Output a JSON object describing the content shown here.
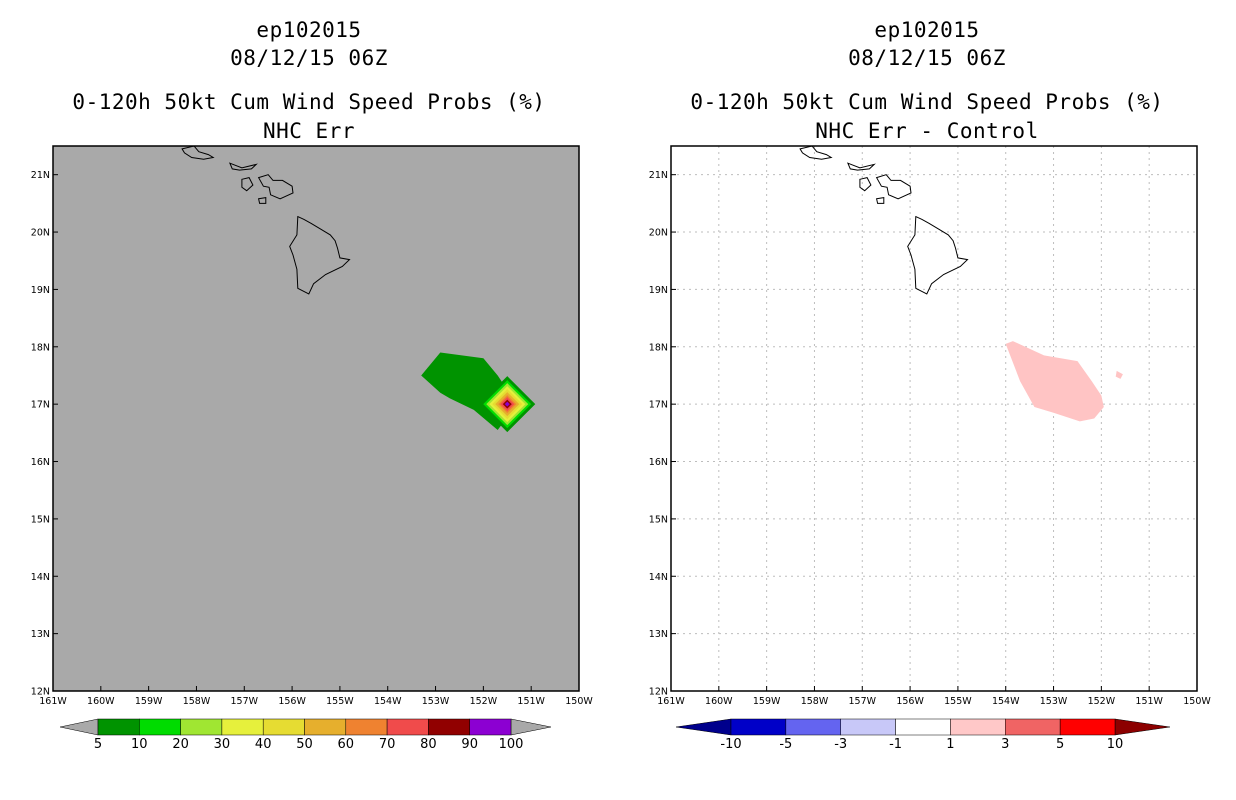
{
  "panels": [
    {
      "storm_id": "ep102015",
      "datetime": "08/12/15 06Z",
      "title": "0-120h 50kt Cum Wind Speed Probs (%)",
      "subtitle": "NHC Err"
    },
    {
      "storm_id": "ep102015",
      "datetime": "08/12/15 06Z",
      "title": "0-120h 50kt Cum Wind Speed Probs (%)",
      "subtitle": "NHC Err - Control"
    }
  ],
  "chart_data": [
    {
      "type": "heatmap",
      "title": "0-120h 50kt Cum Wind Speed Probs (%)",
      "subtitle": "NHC Err",
      "x_range_deg_lon": [
        -161,
        -150
      ],
      "y_range_deg_lat": [
        12,
        21.5
      ],
      "x_ticks": [
        "161W",
        "160W",
        "159W",
        "158W",
        "157W",
        "156W",
        "155W",
        "154W",
        "153W",
        "152W",
        "151W",
        "150W"
      ],
      "y_ticks": [
        "12N",
        "13N",
        "14N",
        "15N",
        "16N",
        "17N",
        "18N",
        "19N",
        "20N",
        "21N"
      ],
      "background": "#a9a9a9",
      "colorbar": {
        "labels": [
          "5",
          "10",
          "20",
          "30",
          "40",
          "50",
          "60",
          "70",
          "80",
          "90",
          "100"
        ],
        "colors": [
          "#009300",
          "#00dc00",
          "#a0e632",
          "#e6f03c",
          "#e6dc32",
          "#e6af2d",
          "#ef8230",
          "#f04b4b",
          "#910000",
          "#8c00d2"
        ]
      },
      "features": [
        {
          "name": "prob-5-10",
          "color": "#009300",
          "polygon_lonlat": [
            [
              -153.3,
              17.5
            ],
            [
              -152.9,
              17.9
            ],
            [
              -152.0,
              17.8
            ],
            [
              -151.7,
              17.5
            ],
            [
              -151.3,
              17.0
            ],
            [
              -151.7,
              16.55
            ],
            [
              -152.2,
              16.9
            ],
            [
              -152.7,
              17.1
            ],
            [
              -152.9,
              17.2
            ]
          ]
        },
        {
          "name": "prob-peak-center",
          "lonlat": [
            -151.5,
            17.0
          ],
          "max_value": 100
        }
      ]
    },
    {
      "type": "heatmap",
      "title": "0-120h 50kt Cum Wind Speed Probs (%)",
      "subtitle": "NHC Err - Control",
      "x_range_deg_lon": [
        -161,
        -150
      ],
      "y_range_deg_lat": [
        12,
        21.5
      ],
      "x_ticks": [
        "161W",
        "160W",
        "159W",
        "158W",
        "157W",
        "156W",
        "155W",
        "154W",
        "153W",
        "152W",
        "151W",
        "150W"
      ],
      "y_ticks": [
        "12N",
        "13N",
        "14N",
        "15N",
        "16N",
        "17N",
        "18N",
        "19N",
        "20N",
        "21N"
      ],
      "grid": true,
      "background": "#ffffff",
      "colorbar": {
        "labels": [
          "-10",
          "-5",
          "-3",
          "-1",
          "1",
          "3",
          "5",
          "10"
        ],
        "colors": [
          "#0000c8",
          "#6464f0",
          "#c8c8f8",
          "#ffffff",
          "#ffc8c8",
          "#f06464",
          "#ff0000"
        ],
        "end_colors": [
          "#00008c",
          "#8c0000"
        ]
      },
      "features": [
        {
          "name": "diff-1-3",
          "color": "#ffc4c4",
          "polygon_lonlat": [
            [
              -154.0,
              18.05
            ],
            [
              -153.85,
              18.1
            ],
            [
              -153.2,
              17.85
            ],
            [
              -152.5,
              17.75
            ],
            [
              -152.2,
              17.4
            ],
            [
              -152.0,
              17.15
            ],
            [
              -151.95,
              16.95
            ],
            [
              -152.15,
              16.75
            ],
            [
              -152.45,
              16.7
            ],
            [
              -153.0,
              16.85
            ],
            [
              -153.4,
              16.95
            ],
            [
              -153.7,
              17.4
            ]
          ]
        },
        {
          "name": "diff-1-3-small",
          "color": "#ffc4c4",
          "polygon_lonlat": [
            [
              -151.68,
              17.58
            ],
            [
              -151.55,
              17.52
            ],
            [
              -151.6,
              17.44
            ],
            [
              -151.7,
              17.48
            ]
          ]
        }
      ]
    }
  ]
}
